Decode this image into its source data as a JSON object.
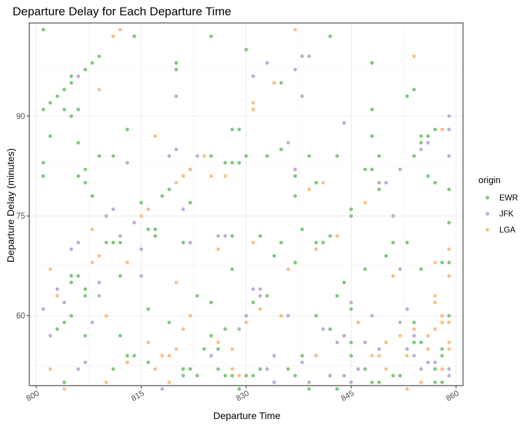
{
  "chart_data": {
    "type": "scatter",
    "title": "Departure Delay for Each Departure Time",
    "xlabel": "Departure Time",
    "ylabel": "Departure Delay (minutes)",
    "xlim": [
      799,
      861
    ],
    "ylim": [
      49.5,
      104
    ],
    "x_ticks": [
      800,
      815,
      830,
      845,
      860
    ],
    "y_ticks": [
      60,
      75,
      90
    ],
    "grid": true,
    "legend": {
      "title": "origin",
      "position": "right",
      "entries": [
        {
          "name": "EWR",
          "color": "#7fc97f"
        },
        {
          "name": "JFK",
          "color": "#beaed4"
        },
        {
          "name": "LGA",
          "color": "#fdc086"
        }
      ]
    },
    "series": [
      {
        "name": "EWR",
        "color": "#7fc97f",
        "points": [
          [
            801,
            103
          ],
          [
            801,
            91
          ],
          [
            801,
            83
          ],
          [
            801,
            81
          ],
          [
            802,
            87
          ],
          [
            802,
            92
          ],
          [
            803,
            93
          ],
          [
            803,
            58
          ],
          [
            804,
            91
          ],
          [
            804,
            94
          ],
          [
            804,
            59
          ],
          [
            804,
            50
          ],
          [
            805,
            96
          ],
          [
            805,
            95
          ],
          [
            805,
            90
          ],
          [
            805,
            66
          ],
          [
            805,
            65
          ],
          [
            805,
            60
          ],
          [
            806,
            91
          ],
          [
            806,
            86
          ],
          [
            806,
            81
          ],
          [
            806,
            66
          ],
          [
            807,
            97
          ],
          [
            807,
            82
          ],
          [
            807,
            80
          ],
          [
            807,
            64
          ],
          [
            807,
            57
          ],
          [
            807,
            63
          ],
          [
            808,
            98
          ],
          [
            808,
            78
          ],
          [
            809,
            99
          ],
          [
            809,
            84
          ],
          [
            810,
            71
          ],
          [
            811,
            84
          ],
          [
            811,
            71
          ],
          [
            811,
            52
          ],
          [
            812,
            66
          ],
          [
            812,
            57
          ],
          [
            812,
            71
          ],
          [
            813,
            88
          ],
          [
            813,
            54
          ],
          [
            813,
            53
          ],
          [
            814,
            102
          ],
          [
            814,
            54
          ],
          [
            815,
            77
          ],
          [
            816,
            73
          ],
          [
            816,
            61
          ],
          [
            816,
            53
          ],
          [
            817,
            73
          ],
          [
            817,
            72
          ],
          [
            818,
            78
          ],
          [
            819,
            79
          ],
          [
            819,
            59
          ],
          [
            820,
            98
          ],
          [
            820,
            97
          ],
          [
            821,
            71
          ],
          [
            821,
            52
          ],
          [
            821,
            51
          ],
          [
            822,
            77
          ],
          [
            822,
            82
          ],
          [
            822,
            52
          ],
          [
            823,
            51
          ],
          [
            823,
            63
          ],
          [
            824,
            55
          ],
          [
            825,
            102
          ],
          [
            825,
            84
          ],
          [
            825,
            62
          ],
          [
            825,
            57
          ],
          [
            826,
            55
          ],
          [
            826,
            52
          ],
          [
            827,
            83
          ],
          [
            827,
            58
          ],
          [
            827,
            51
          ],
          [
            828,
            88
          ],
          [
            828,
            83
          ],
          [
            828,
            67
          ],
          [
            828,
            72
          ],
          [
            828,
            51
          ],
          [
            829,
            88
          ],
          [
            829,
            83
          ],
          [
            829,
            49
          ],
          [
            830,
            84
          ],
          [
            830,
            100
          ],
          [
            830,
            51
          ],
          [
            831,
            62
          ],
          [
            831,
            51
          ],
          [
            832,
            72
          ],
          [
            832,
            52
          ],
          [
            833,
            84
          ],
          [
            833,
            63
          ],
          [
            834,
            95
          ],
          [
            834,
            69
          ],
          [
            835,
            95
          ],
          [
            835,
            85
          ],
          [
            835,
            71
          ],
          [
            836,
            52
          ],
          [
            837,
            78
          ],
          [
            837,
            81
          ],
          [
            837,
            68
          ],
          [
            837,
            51
          ],
          [
            838,
            73
          ],
          [
            838,
            54
          ],
          [
            839,
            84
          ],
          [
            839,
            49
          ],
          [
            840,
            80
          ],
          [
            840,
            71
          ],
          [
            840,
            60
          ],
          [
            841,
            71
          ],
          [
            842,
            102
          ],
          [
            842,
            72
          ],
          [
            842,
            58
          ],
          [
            842,
            51
          ],
          [
            843,
            84
          ],
          [
            843,
            63
          ],
          [
            843,
            49
          ],
          [
            844,
            65
          ],
          [
            845,
            76
          ],
          [
            845,
            75
          ],
          [
            845,
            61
          ],
          [
            845,
            56
          ],
          [
            845,
            54
          ],
          [
            846,
            52
          ],
          [
            847,
            82
          ],
          [
            847,
            67
          ],
          [
            847,
            52
          ],
          [
            848,
            98
          ],
          [
            848,
            91
          ],
          [
            848,
            87
          ],
          [
            848,
            82
          ],
          [
            848,
            50
          ],
          [
            849,
            84
          ],
          [
            849,
            80
          ],
          [
            849,
            79
          ],
          [
            849,
            50
          ],
          [
            850,
            69
          ],
          [
            850,
            56
          ],
          [
            851,
            71
          ],
          [
            851,
            51
          ],
          [
            852,
            51
          ],
          [
            853,
            93
          ],
          [
            853,
            71
          ],
          [
            853,
            55
          ],
          [
            854,
            94
          ],
          [
            854,
            84
          ],
          [
            854,
            56
          ],
          [
            854,
            59
          ],
          [
            855,
            87
          ],
          [
            855,
            86
          ],
          [
            855,
            67
          ],
          [
            855,
            56
          ],
          [
            856,
            87
          ],
          [
            856,
            81
          ],
          [
            856,
            55
          ],
          [
            857,
            88
          ],
          [
            857,
            80
          ],
          [
            857,
            52
          ],
          [
            857,
            50
          ],
          [
            858,
            68
          ],
          [
            858,
            54
          ],
          [
            858,
            55
          ],
          [
            858,
            50
          ],
          [
            859,
            88
          ],
          [
            859,
            79
          ],
          [
            859,
            74
          ],
          [
            859,
            68
          ],
          [
            859,
            60
          ],
          [
            859,
            59
          ]
        ]
      },
      {
        "name": "JFK",
        "color": "#beaed4",
        "points": [
          [
            801,
            61
          ],
          [
            802,
            57
          ],
          [
            803,
            64
          ],
          [
            804,
            62
          ],
          [
            805,
            70
          ],
          [
            806,
            96
          ],
          [
            806,
            71
          ],
          [
            806,
            52
          ],
          [
            807,
            53
          ],
          [
            808,
            59
          ],
          [
            809,
            65
          ],
          [
            809,
            63
          ],
          [
            810,
            75
          ],
          [
            811,
            76
          ],
          [
            812,
            72
          ],
          [
            813,
            83
          ],
          [
            814,
            74
          ],
          [
            815,
            70
          ],
          [
            815,
            66
          ],
          [
            818,
            49
          ],
          [
            819,
            84
          ],
          [
            820,
            93
          ],
          [
            820,
            85
          ],
          [
            821,
            76
          ],
          [
            822,
            71
          ],
          [
            823,
            84
          ],
          [
            825,
            54
          ],
          [
            826,
            72
          ],
          [
            827,
            72
          ],
          [
            829,
            58
          ],
          [
            830,
            60
          ],
          [
            831,
            96
          ],
          [
            831,
            64
          ],
          [
            832,
            64
          ],
          [
            832,
            63
          ],
          [
            833,
            98
          ],
          [
            833,
            52
          ],
          [
            834,
            54
          ],
          [
            834,
            50
          ],
          [
            835,
            60
          ],
          [
            836,
            86
          ],
          [
            836,
            60
          ],
          [
            837,
            82
          ],
          [
            837,
            97
          ],
          [
            838,
            99
          ],
          [
            838,
            93
          ],
          [
            838,
            53
          ],
          [
            839,
            99
          ],
          [
            839,
            50
          ],
          [
            840,
            54
          ],
          [
            841,
            58
          ],
          [
            842,
            51
          ],
          [
            843,
            56
          ],
          [
            844,
            89
          ],
          [
            844,
            57
          ],
          [
            844,
            51
          ],
          [
            845,
            62
          ],
          [
            845,
            50
          ],
          [
            846,
            59
          ],
          [
            846,
            52
          ],
          [
            847,
            56
          ],
          [
            848,
            60
          ],
          [
            849,
            80
          ],
          [
            849,
            55
          ],
          [
            850,
            80
          ],
          [
            851,
            75
          ],
          [
            852,
            82
          ],
          [
            852,
            67
          ],
          [
            852,
            59
          ],
          [
            853,
            61
          ],
          [
            853,
            55
          ],
          [
            854,
            54
          ],
          [
            854,
            57
          ],
          [
            855,
            52
          ],
          [
            855,
            85
          ],
          [
            856,
            86
          ],
          [
            856,
            53
          ],
          [
            857,
            53
          ],
          [
            858,
            60
          ],
          [
            858,
            52
          ],
          [
            859,
            90
          ],
          [
            859,
            88
          ],
          [
            859,
            84
          ],
          [
            859,
            52
          ],
          [
            859,
            51
          ]
        ]
      },
      {
        "name": "LGA",
        "color": "#fdc086",
        "points": [
          [
            802,
            67
          ],
          [
            802,
            52
          ],
          [
            803,
            63
          ],
          [
            804,
            49
          ],
          [
            808,
            73
          ],
          [
            808,
            68
          ],
          [
            809,
            94
          ],
          [
            809,
            69
          ],
          [
            810,
            60
          ],
          [
            810,
            50
          ],
          [
            811,
            102
          ],
          [
            812,
            103
          ],
          [
            813,
            68
          ],
          [
            813,
            53
          ],
          [
            815,
            75
          ],
          [
            816,
            76
          ],
          [
            816,
            56
          ],
          [
            817,
            87
          ],
          [
            817,
            52
          ],
          [
            818,
            54
          ],
          [
            819,
            50
          ],
          [
            819,
            54
          ],
          [
            820,
            65
          ],
          [
            820,
            80
          ],
          [
            820,
            55
          ],
          [
            821,
            81
          ],
          [
            821,
            58
          ],
          [
            822,
            60
          ],
          [
            822,
            82
          ],
          [
            824,
            84
          ],
          [
            825,
            81
          ],
          [
            826,
            70
          ],
          [
            826,
            56
          ],
          [
            827,
            81
          ],
          [
            828,
            55
          ],
          [
            828,
            52
          ],
          [
            829,
            51
          ],
          [
            830,
            59
          ],
          [
            831,
            91
          ],
          [
            831,
            92
          ],
          [
            831,
            71
          ],
          [
            832,
            61
          ],
          [
            834,
            95
          ],
          [
            835,
            60
          ],
          [
            836,
            67
          ],
          [
            837,
            103
          ],
          [
            839,
            79
          ],
          [
            840,
            70
          ],
          [
            840,
            54
          ],
          [
            841,
            80
          ],
          [
            843,
            72
          ],
          [
            846,
            59
          ],
          [
            847,
            77
          ],
          [
            848,
            54
          ],
          [
            849,
            54
          ],
          [
            850,
            52
          ],
          [
            850,
            56
          ],
          [
            851,
            66
          ],
          [
            852,
            57
          ],
          [
            853,
            49
          ],
          [
            853,
            54
          ],
          [
            854,
            99
          ],
          [
            854,
            58
          ],
          [
            855,
            50
          ],
          [
            856,
            55
          ],
          [
            856,
            57
          ],
          [
            857,
            68
          ],
          [
            857,
            62
          ],
          [
            857,
            63
          ],
          [
            857,
            58
          ],
          [
            858,
            60
          ],
          [
            858,
            59
          ],
          [
            858,
            88
          ],
          [
            858,
            52
          ],
          [
            859,
            70
          ],
          [
            859,
            66
          ],
          [
            859,
            59
          ],
          [
            859,
            55
          ],
          [
            859,
            56
          ]
        ]
      }
    ]
  }
}
